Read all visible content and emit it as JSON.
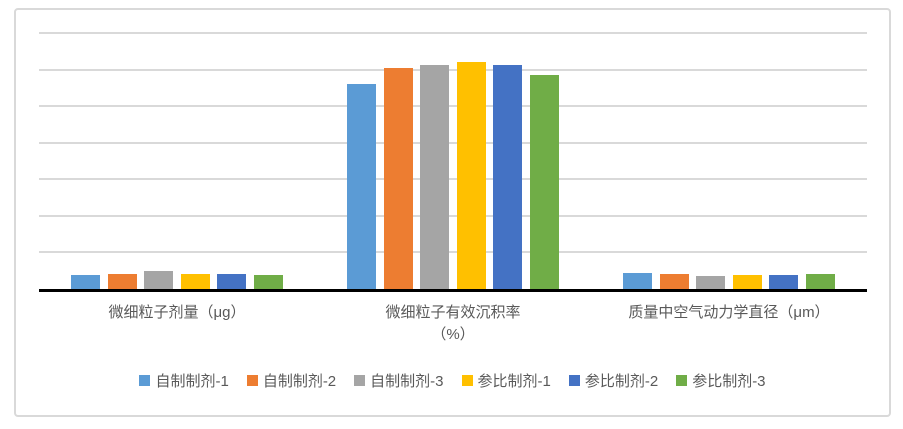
{
  "chart_style": {
    "frame_border_color": "#D9D9D9",
    "background_color": "#FFFFFF",
    "gridline_color": "#D9D9D9",
    "axis_line_color": "#000000",
    "text_color": "#595959"
  },
  "chart_data": {
    "type": "bar",
    "title": "",
    "xlabel": "",
    "ylabel": "",
    "categories": [
      "微细粒子剂量（μg）",
      "微细粒子有效沉积率（%）",
      "质量中空气动力学直径（μm）"
    ],
    "categories_display_lines": [
      [
        "微细粒子剂量（μg）"
      ],
      [
        "微细粒子有效沉积率",
        "（%）"
      ],
      [
        "质量中空气动力学直径（μm）"
      ]
    ],
    "series": [
      {
        "name": "自制制剂-1",
        "color": "#5B9BD5",
        "values": [
          3.8,
          56.0,
          4.5
        ]
      },
      {
        "name": "自制制剂-2",
        "color": "#ED7D31",
        "values": [
          4.1,
          60.3,
          4.0
        ]
      },
      {
        "name": "自制制剂-3",
        "color": "#A5A5A5",
        "values": [
          4.9,
          61.2,
          3.6
        ]
      },
      {
        "name": "参比制剂-1",
        "color": "#FFC000",
        "values": [
          4.1,
          62.1,
          3.8
        ]
      },
      {
        "name": "参比制剂-2",
        "color": "#4472C4",
        "values": [
          4.1,
          61.2,
          3.8
        ]
      },
      {
        "name": "参比制剂-3",
        "color": "#70AD47",
        "values": [
          3.8,
          58.4,
          4.0
        ]
      }
    ],
    "ylim": [
      0,
      70
    ],
    "gridline_step": 10,
    "y_axis_tick_labels_visible": false,
    "grid": true,
    "legend_position": "bottom"
  }
}
